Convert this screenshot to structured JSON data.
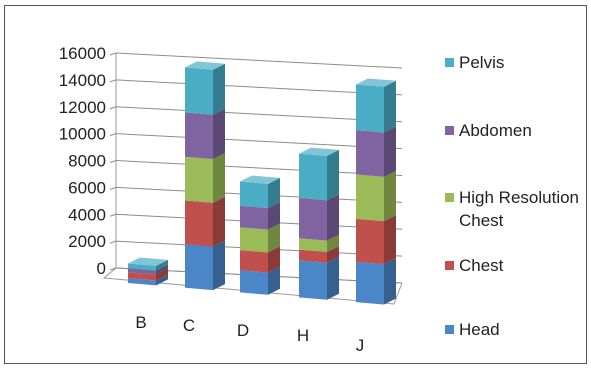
{
  "chart_data": {
    "type": "bar",
    "stacked": true,
    "three_d": true,
    "categories": [
      "B",
      "C",
      "D",
      "H",
      "J"
    ],
    "series": [
      {
        "name": "Head",
        "color": "#4a86c8",
        "values": [
          350,
          3250,
          1650,
          2750,
          3000
        ]
      },
      {
        "name": "Chest",
        "color": "#c0504d",
        "values": [
          450,
          3250,
          1500,
          800,
          3200
        ]
      },
      {
        "name": "High Resolution Chest",
        "color": "#9bbb59",
        "values": [
          0,
          3250,
          1700,
          850,
          3300
        ]
      },
      {
        "name": "Abdomen",
        "color": "#8064a2",
        "values": [
          300,
          3300,
          1600,
          3000,
          3300
        ]
      },
      {
        "name": "Pelvis",
        "color": "#4bacc6",
        "values": [
          350,
          3350,
          1800,
          3300,
          3400
        ]
      }
    ],
    "y_ticks": [
      "0",
      "2000",
      "4000",
      "6000",
      "8000",
      "10000",
      "12000",
      "14000",
      "16000"
    ],
    "ylim": [
      0,
      16000
    ],
    "grid": true,
    "legend_position": "right",
    "title": "",
    "xlabel": "",
    "ylabel": ""
  }
}
